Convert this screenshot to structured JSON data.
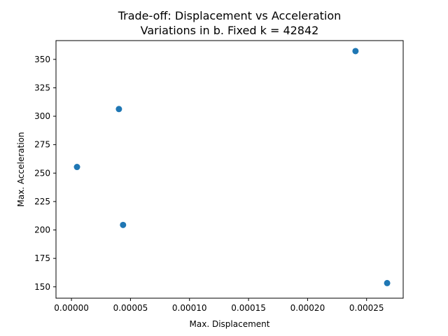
{
  "chart_data": {
    "type": "scatter",
    "title": "Trade-off: Displacement vs Acceleration",
    "subtitle": "Variations in b. Fixed k = 42842",
    "xlabel": "Max. Displacement",
    "ylabel": "Max. Acceleration",
    "xlim": [
      -1.31e-05,
      0.000281
    ],
    "ylim": [
      140,
      366.5
    ],
    "xticks": [
      0.0,
      5e-05,
      0.0001,
      0.00015,
      0.0002,
      0.00025
    ],
    "xtick_labels": [
      "0.00000",
      "0.00005",
      "0.00010",
      "0.00015",
      "0.00020",
      "0.00025"
    ],
    "yticks": [
      150,
      175,
      200,
      225,
      250,
      275,
      300,
      325,
      350
    ],
    "ytick_labels": [
      "150",
      "175",
      "200",
      "225",
      "250",
      "275",
      "300",
      "325",
      "350"
    ],
    "grid": false,
    "marker_color": "#1f77b4",
    "series": [
      {
        "points": [
          {
            "x": 4.7e-06,
            "y": 255.4
          },
          {
            "x": 4.02e-05,
            "y": 306.3
          },
          {
            "x": 4.37e-05,
            "y": 204.4
          },
          {
            "x": 0.0002406,
            "y": 357.3
          },
          {
            "x": 0.0002674,
            "y": 153.3
          }
        ]
      }
    ]
  }
}
